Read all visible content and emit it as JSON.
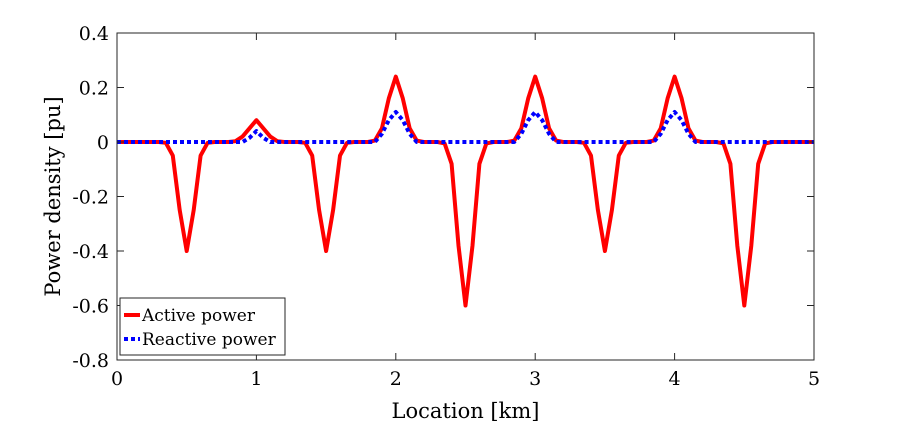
{
  "chart_data": {
    "type": "line",
    "title": "",
    "xlabel": "Location [km]",
    "ylabel": "Power density [pu]",
    "xlim": [
      0,
      5
    ],
    "ylim": [
      -0.8,
      0.4
    ],
    "xticks": [
      0,
      1,
      2,
      3,
      4,
      5
    ],
    "xtick_labels": [
      "0",
      "1",
      "2",
      "3",
      "4",
      "5"
    ],
    "yticks": [
      -0.8,
      -0.6,
      -0.4,
      -0.2,
      0,
      0.2,
      0.4
    ],
    "ytick_labels": [
      "-0.8",
      "-0.6",
      "-0.4",
      "-0.2",
      "0",
      "0.2",
      "0.4"
    ],
    "grid": false,
    "box": true,
    "legend_position": "bottom-left",
    "series": [
      {
        "name": "Active power",
        "color": "#ff0000",
        "style": "solid",
        "x": [
          0,
          0.3,
          0.35,
          0.4,
          0.45,
          0.5,
          0.55,
          0.6,
          0.65,
          0.7,
          0.8,
          0.85,
          0.9,
          0.95,
          1.0,
          1.05,
          1.1,
          1.15,
          1.2,
          1.3,
          1.35,
          1.4,
          1.45,
          1.5,
          1.55,
          1.6,
          1.65,
          1.7,
          1.8,
          1.85,
          1.9,
          1.95,
          2.0,
          2.05,
          2.1,
          2.15,
          2.2,
          2.3,
          2.35,
          2.4,
          2.45,
          2.5,
          2.55,
          2.6,
          2.65,
          2.7,
          2.8,
          2.85,
          2.9,
          2.95,
          3.0,
          3.05,
          3.1,
          3.15,
          3.2,
          3.3,
          3.35,
          3.4,
          3.45,
          3.5,
          3.55,
          3.6,
          3.65,
          3.7,
          3.8,
          3.85,
          3.9,
          3.95,
          4.0,
          4.05,
          4.1,
          4.15,
          4.2,
          4.3,
          4.35,
          4.4,
          4.45,
          4.5,
          4.55,
          4.6,
          4.65,
          4.7,
          5.0
        ],
        "y": [
          0,
          0,
          -0.003,
          -0.05,
          -0.25,
          -0.4,
          -0.25,
          -0.05,
          -0.003,
          0,
          0,
          0.003,
          0.02,
          0.05,
          0.08,
          0.05,
          0.02,
          0.003,
          0,
          0,
          -0.003,
          -0.05,
          -0.25,
          -0.4,
          -0.25,
          -0.05,
          -0.003,
          0,
          0,
          0.005,
          0.05,
          0.16,
          0.24,
          0.16,
          0.05,
          0.005,
          0,
          0,
          -0.005,
          -0.08,
          -0.38,
          -0.6,
          -0.38,
          -0.08,
          -0.005,
          0,
          0,
          0.005,
          0.05,
          0.16,
          0.24,
          0.16,
          0.05,
          0.005,
          0,
          0,
          -0.003,
          -0.05,
          -0.25,
          -0.4,
          -0.25,
          -0.05,
          -0.003,
          0,
          0,
          0.005,
          0.05,
          0.16,
          0.24,
          0.16,
          0.05,
          0.005,
          0,
          0,
          -0.005,
          -0.08,
          -0.38,
          -0.6,
          -0.38,
          -0.08,
          -0.005,
          0,
          0
        ]
      },
      {
        "name": "Reactive power",
        "color": "#0000ff",
        "style": "dotted",
        "x": [
          0,
          0.9,
          0.95,
          1.0,
          1.05,
          1.1,
          1.85,
          1.9,
          1.95,
          2.0,
          2.05,
          2.1,
          2.15,
          2.85,
          2.9,
          2.95,
          3.0,
          3.05,
          3.1,
          3.15,
          3.85,
          3.9,
          3.95,
          4.0,
          4.05,
          4.1,
          4.15,
          5.0
        ],
        "y": [
          0,
          0,
          0.015,
          0.04,
          0.015,
          0,
          0,
          0.03,
          0.08,
          0.11,
          0.08,
          0.03,
          0,
          0,
          0.03,
          0.08,
          0.11,
          0.08,
          0.03,
          0,
          0,
          0.03,
          0.08,
          0.11,
          0.08,
          0.03,
          0,
          0
        ]
      }
    ]
  }
}
